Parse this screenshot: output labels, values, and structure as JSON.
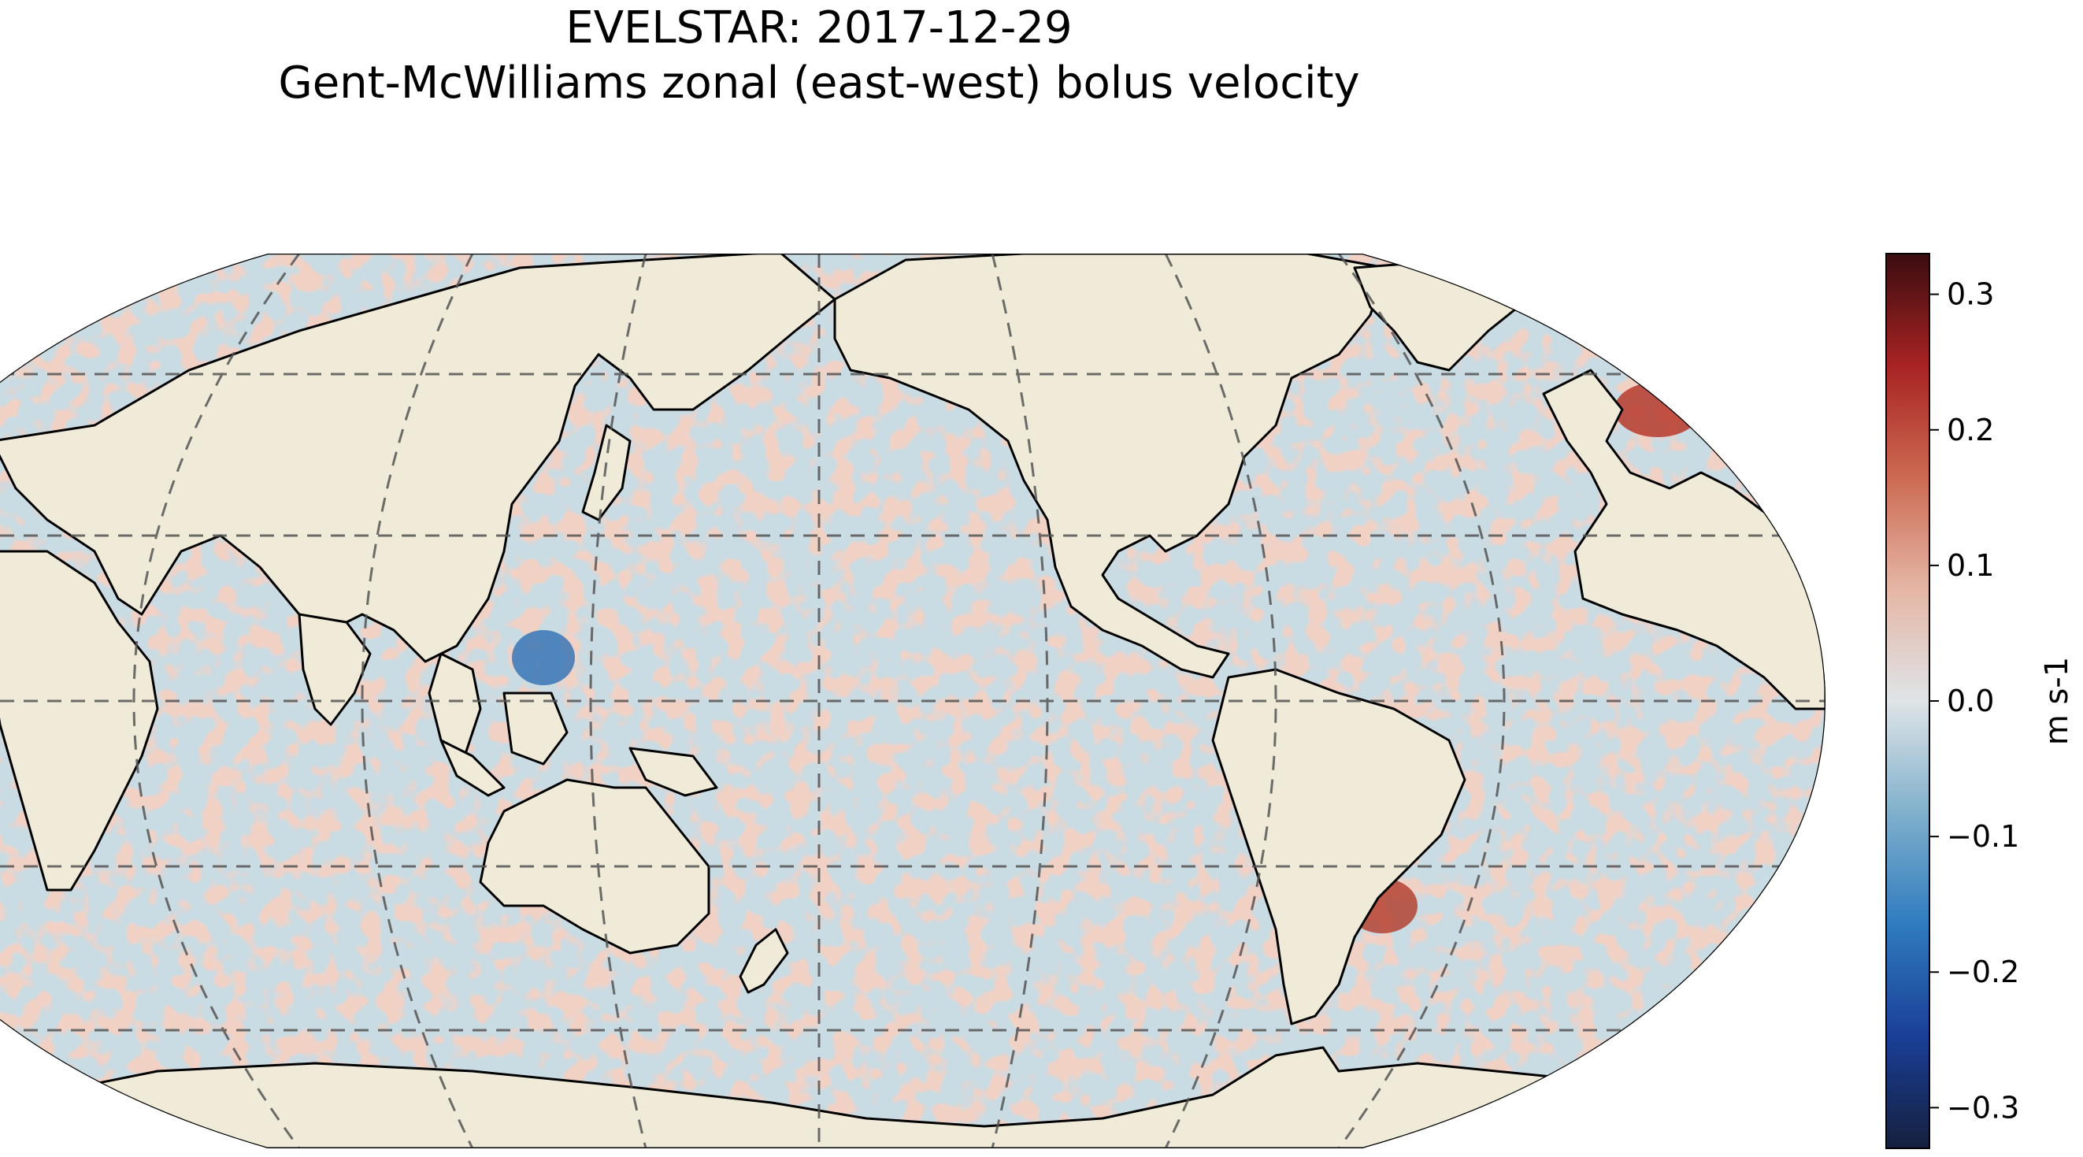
{
  "title": "EVELSTAR: 2017-12-29",
  "subtitle": "Gent-McWilliams zonal (east-west) bolus velocity",
  "map": {
    "projection": "robinson",
    "central_longitude": -150,
    "colors": {
      "land": "#efebd8",
      "coastline": "#000000",
      "gridline": "#555555",
      "ocean_positive": "#e3a38f",
      "ocean_negative": "#a9c8d6",
      "ocean_neutral": "#f2ecea"
    }
  },
  "colorbar": {
    "label": "m s-1",
    "min": -0.33,
    "max": 0.33,
    "ticks": [
      {
        "value": 0.3,
        "label": "0.3"
      },
      {
        "value": 0.2,
        "label": "0.2"
      },
      {
        "value": 0.1,
        "label": "0.1"
      },
      {
        "value": 0.0,
        "label": "0.0"
      },
      {
        "value": -0.1,
        "label": "−0.1"
      },
      {
        "value": -0.2,
        "label": "−0.2"
      },
      {
        "value": -0.3,
        "label": "−0.3"
      }
    ],
    "gradient": [
      "#15203e",
      "#1a3f96",
      "#2f7bbf",
      "#7fb0cc",
      "#dfe4e7",
      "#e5b6a5",
      "#cc6a52",
      "#a82323",
      "#3a0d10"
    ]
  }
}
